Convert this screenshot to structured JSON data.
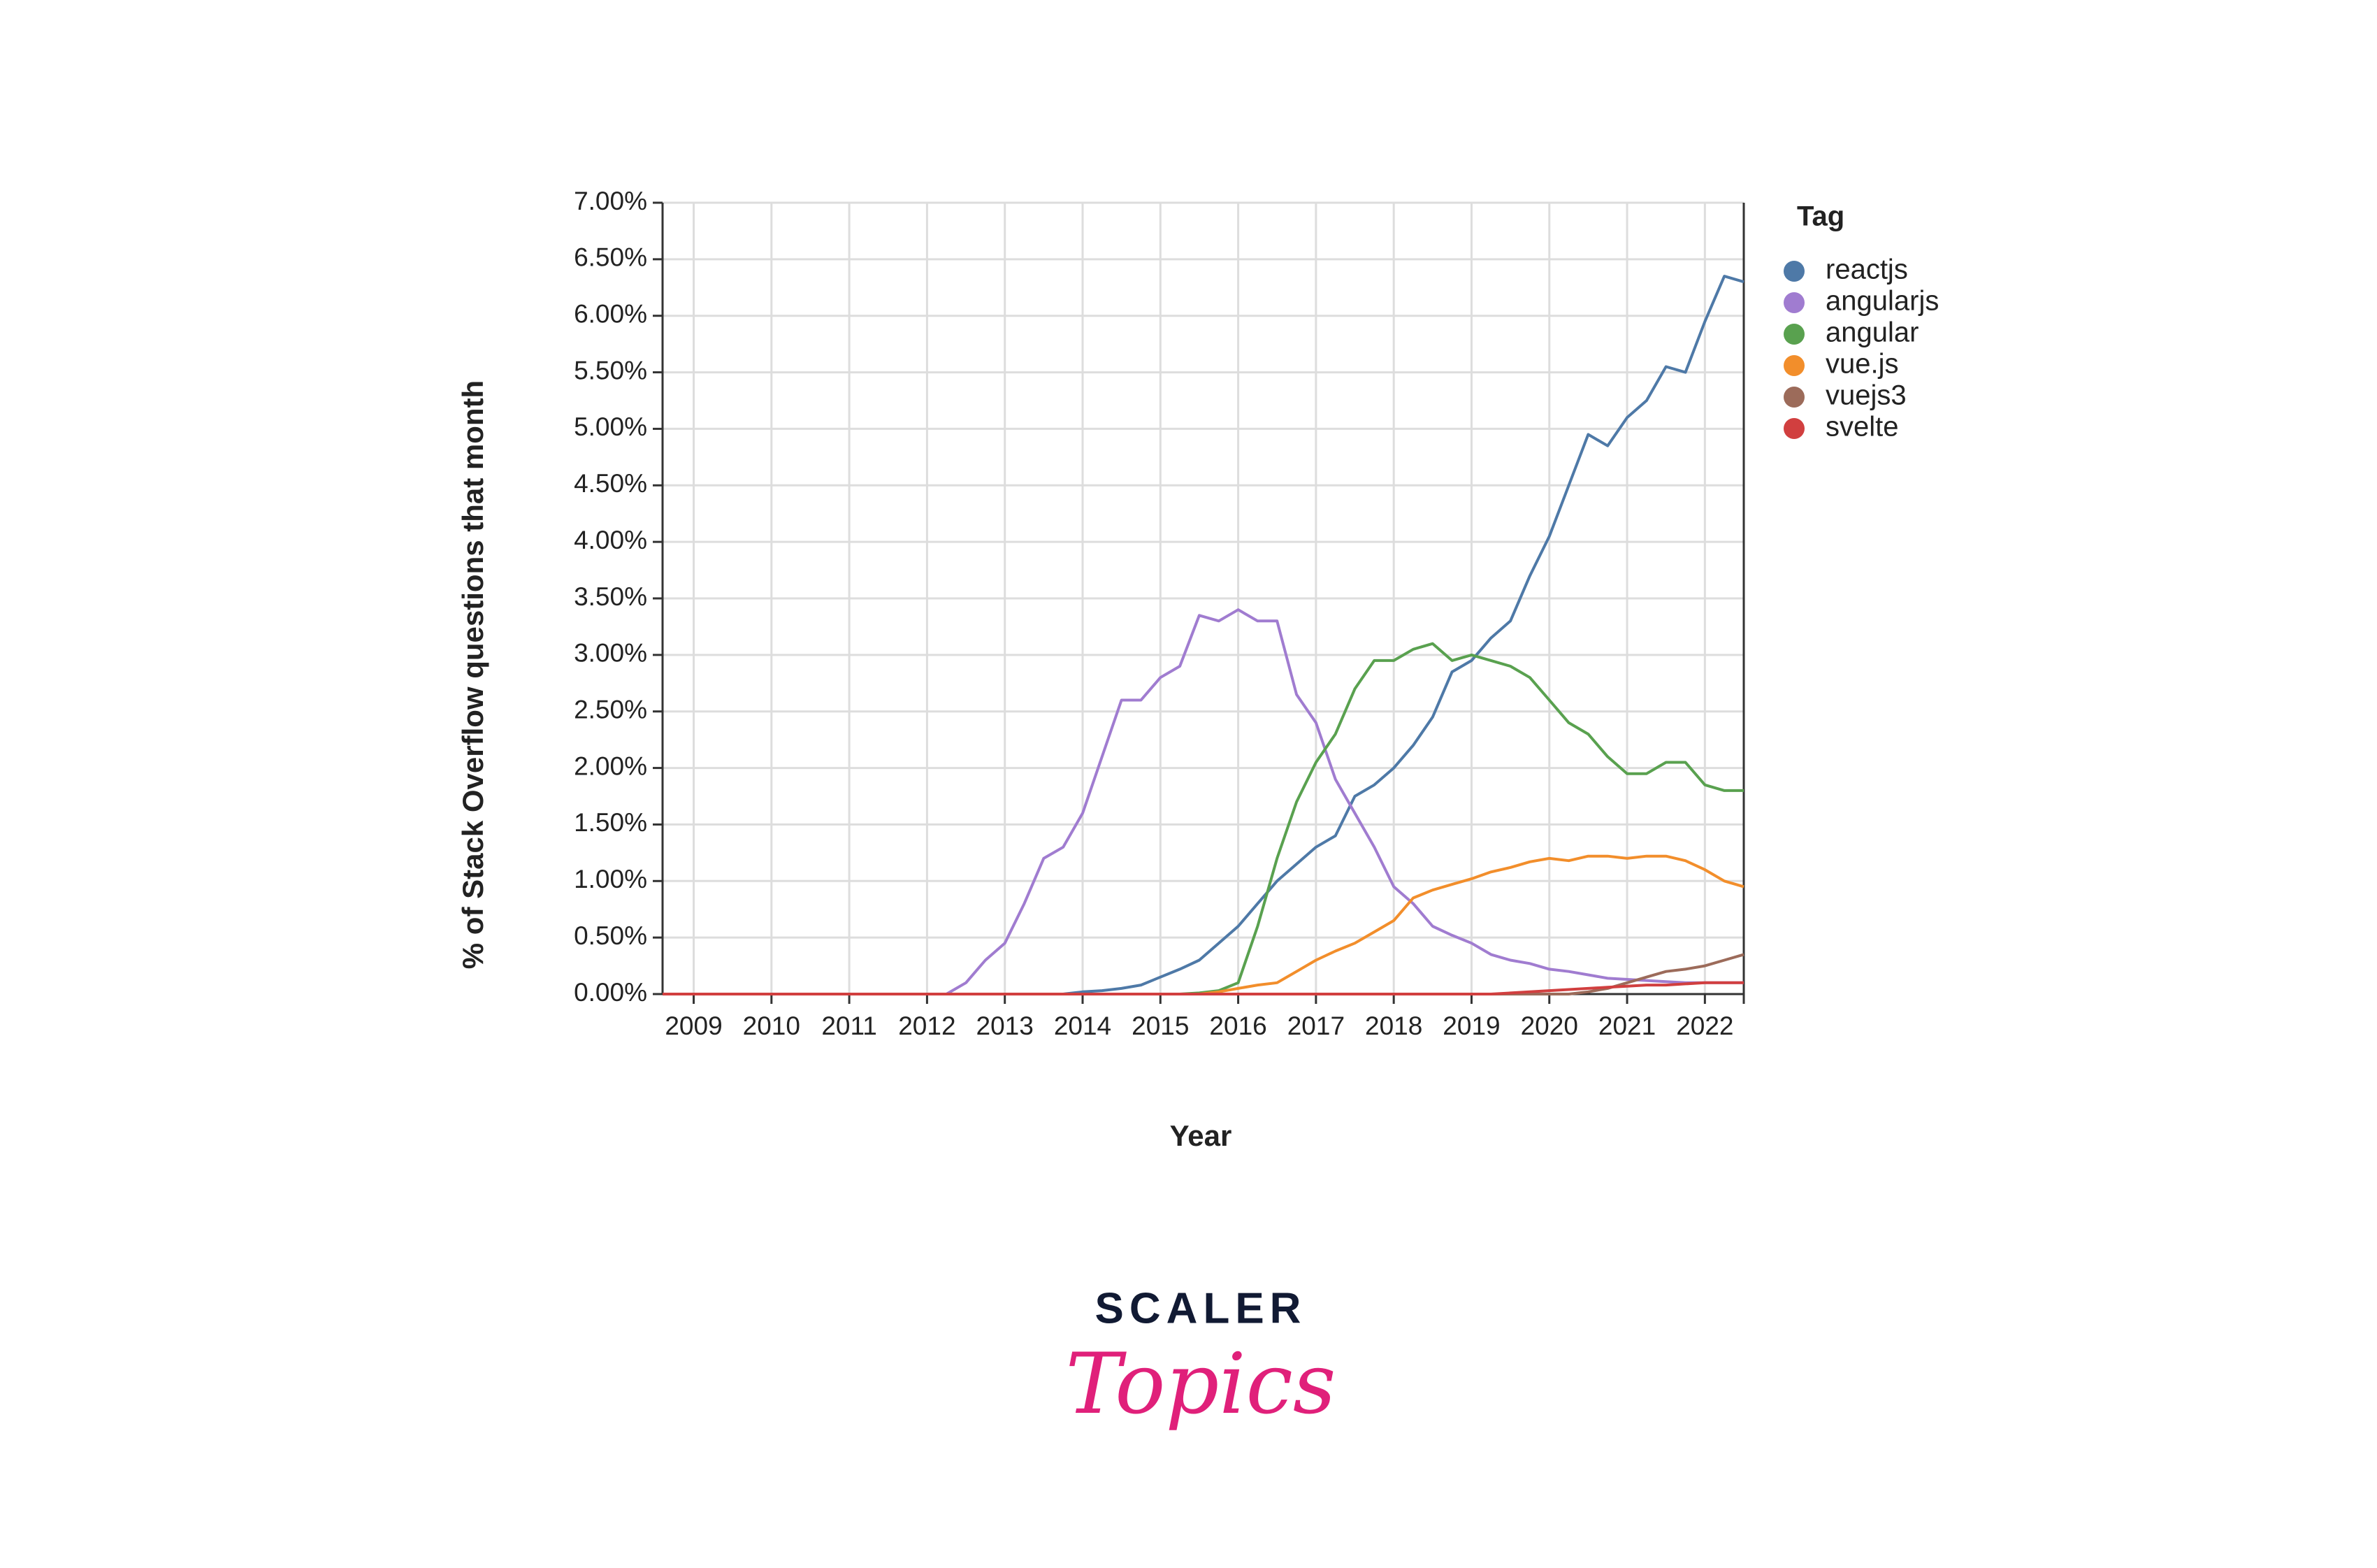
{
  "chart_data": {
    "type": "line",
    "y_label": "% of Stack Overflow questions that month",
    "x_label": "Year",
    "legend_title": "Tag",
    "legend_position": "right",
    "grid": true,
    "xlim": [
      2008.6,
      2022.5
    ],
    "xticks": [
      2009,
      2010,
      2011,
      2012,
      2013,
      2014,
      2015,
      2016,
      2017,
      2018,
      2019,
      2020,
      2021,
      2022
    ],
    "ylim": [
      0,
      7
    ],
    "yticks": [
      {
        "value": 0,
        "label": "0.00%"
      },
      {
        "value": 0.5,
        "label": "0.50%"
      },
      {
        "value": 1,
        "label": "1.00%"
      },
      {
        "value": 1.5,
        "label": "1.50%"
      },
      {
        "value": 2,
        "label": "2.00%"
      },
      {
        "value": 2.5,
        "label": "2.50%"
      },
      {
        "value": 3,
        "label": "3.00%"
      },
      {
        "value": 3.5,
        "label": "3.50%"
      },
      {
        "value": 4,
        "label": "4.00%"
      },
      {
        "value": 4.5,
        "label": "4.50%"
      },
      {
        "value": 5,
        "label": "5.00%"
      },
      {
        "value": 5.5,
        "label": "5.50%"
      },
      {
        "value": 6,
        "label": "6.00%"
      },
      {
        "value": 6.5,
        "label": "6.50%"
      },
      {
        "value": 7,
        "label": "7.00%"
      }
    ],
    "x": [
      2008.6,
      2010,
      2011,
      2012,
      2012.25,
      2012.5,
      2012.75,
      2013,
      2013.25,
      2013.5,
      2013.75,
      2014,
      2014.25,
      2014.5,
      2014.75,
      2015,
      2015.25,
      2015.5,
      2015.75,
      2016,
      2016.25,
      2016.5,
      2016.75,
      2017,
      2017.25,
      2017.5,
      2017.75,
      2018,
      2018.25,
      2018.5,
      2018.75,
      2019,
      2019.25,
      2019.5,
      2019.75,
      2020,
      2020.25,
      2020.5,
      2020.75,
      2021,
      2021.25,
      2021.5,
      2021.75,
      2022,
      2022.25,
      2022.5
    ],
    "series": [
      {
        "name": "reactjs",
        "color": "#4e79a7",
        "values": [
          0,
          0,
          0,
          0,
          0,
          0,
          0,
          0,
          0,
          0,
          0,
          0.02,
          0.03,
          0.05,
          0.08,
          0.15,
          0.22,
          0.3,
          0.45,
          0.6,
          0.8,
          1.0,
          1.15,
          1.3,
          1.4,
          1.75,
          1.85,
          2.0,
          2.2,
          2.45,
          2.85,
          2.95,
          3.15,
          3.3,
          3.7,
          4.05,
          4.5,
          4.95,
          4.85,
          5.1,
          5.25,
          5.55,
          5.5,
          5.95,
          6.35,
          6.3
        ]
      },
      {
        "name": "angularjs",
        "color": "#a07cd0",
        "values": [
          0,
          0,
          0,
          0,
          0,
          0.1,
          0.3,
          0.45,
          0.8,
          1.2,
          1.3,
          1.6,
          2.1,
          2.6,
          2.6,
          2.8,
          2.9,
          3.35,
          3.3,
          3.4,
          3.3,
          3.3,
          2.65,
          2.4,
          1.9,
          1.6,
          1.3,
          0.95,
          0.8,
          0.6,
          0.52,
          0.45,
          0.35,
          0.3,
          0.27,
          0.22,
          0.2,
          0.17,
          0.14,
          0.13,
          0.12,
          0.11,
          0.1,
          0.1,
          0.1,
          0.1
        ]
      },
      {
        "name": "angular",
        "color": "#59a14f",
        "values": [
          0,
          0,
          0,
          0,
          0,
          0,
          0,
          0,
          0,
          0,
          0,
          0,
          0,
          0,
          0,
          0,
          0,
          0.01,
          0.03,
          0.1,
          0.6,
          1.2,
          1.7,
          2.05,
          2.3,
          2.7,
          2.95,
          2.95,
          3.05,
          3.1,
          2.95,
          3.0,
          2.95,
          2.9,
          2.8,
          2.6,
          2.4,
          2.3,
          2.1,
          1.95,
          1.95,
          2.05,
          2.05,
          1.85,
          1.8,
          1.8
        ]
      },
      {
        "name": "vue.js",
        "color": "#f28e2b",
        "values": [
          0,
          0,
          0,
          0,
          0,
          0,
          0,
          0,
          0,
          0,
          0,
          0,
          0,
          0,
          0,
          0,
          0,
          0,
          0.02,
          0.05,
          0.08,
          0.1,
          0.2,
          0.3,
          0.38,
          0.45,
          0.55,
          0.65,
          0.85,
          0.92,
          0.97,
          1.02,
          1.08,
          1.12,
          1.17,
          1.2,
          1.18,
          1.22,
          1.22,
          1.2,
          1.22,
          1.22,
          1.18,
          1.1,
          1.0,
          0.95
        ]
      },
      {
        "name": "vuejs3",
        "color": "#9c6b5a",
        "values": [
          0,
          0,
          0,
          0,
          0,
          0,
          0,
          0,
          0,
          0,
          0,
          0,
          0,
          0,
          0,
          0,
          0,
          0,
          0,
          0,
          0,
          0,
          0,
          0,
          0,
          0,
          0,
          0,
          0,
          0,
          0,
          0,
          0,
          0,
          0,
          0,
          0,
          0.02,
          0.05,
          0.1,
          0.15,
          0.2,
          0.22,
          0.25,
          0.3,
          0.35
        ]
      },
      {
        "name": "svelte",
        "color": "#d13f3f",
        "values": [
          0,
          0,
          0,
          0,
          0,
          0,
          0,
          0,
          0,
          0,
          0,
          0,
          0,
          0,
          0,
          0,
          0,
          0,
          0,
          0,
          0,
          0,
          0,
          0,
          0,
          0,
          0,
          0,
          0,
          0,
          0,
          0,
          0,
          0.01,
          0.02,
          0.03,
          0.04,
          0.05,
          0.06,
          0.07,
          0.08,
          0.08,
          0.09,
          0.1,
          0.1,
          0.1
        ]
      }
    ]
  },
  "logo": {
    "name": "SCALER",
    "tagline": "Topics"
  }
}
